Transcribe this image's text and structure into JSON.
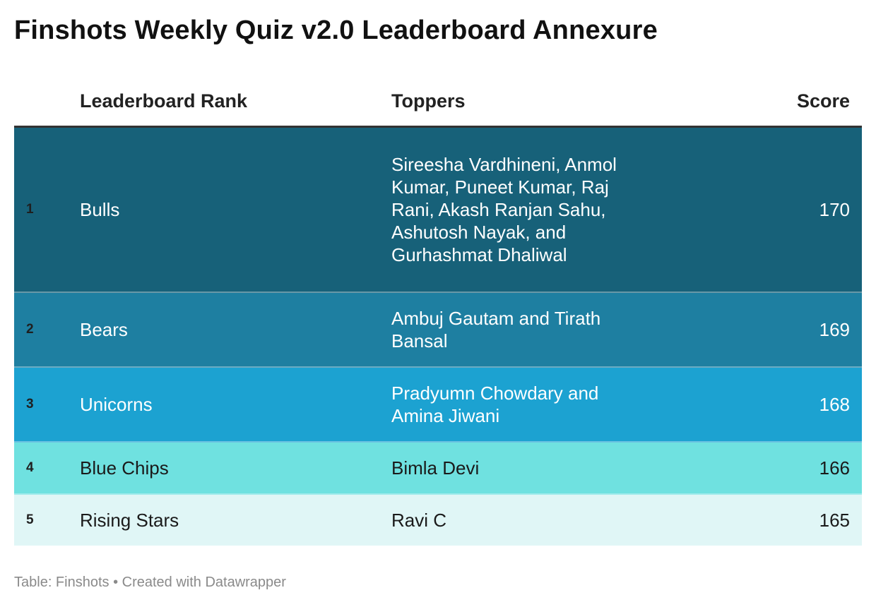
{
  "title": "Finshots Weekly Quiz v2.0 Leaderboard Annexure",
  "chart_data": {
    "type": "table",
    "columns": [
      "",
      "Leaderboard Rank",
      "Toppers",
      "Score"
    ],
    "rows": [
      {
        "num": "1",
        "rank": "Bulls",
        "toppers": "Sireesha Vardhineni, Anmol Kumar, Puneet Kumar, Raj Rani, Akash Ranjan Sahu, Ashutosh Nayak, and Gurhashmat Dhaliwal",
        "score": 170,
        "bg": "#176179",
        "fg": "#ffffff"
      },
      {
        "num": "2",
        "rank": "Bears",
        "toppers": "Ambuj Gautam and Tirath Bansal",
        "score": 169,
        "bg": "#1e7fa1",
        "fg": "#ffffff"
      },
      {
        "num": "3",
        "rank": "Unicorns",
        "toppers": "Pradyumn Chowdary and Amina Jiwani",
        "score": 168,
        "bg": "#1ca2d1",
        "fg": "#ffffff"
      },
      {
        "num": "4",
        "rank": "Blue Chips",
        "toppers": "Bimla Devi",
        "score": 166,
        "bg": "#6fe1e0",
        "fg": "#1a1a1a"
      },
      {
        "num": "5",
        "rank": "Rising Stars",
        "toppers": "Ravi C",
        "score": 165,
        "bg": "#e0f6f6",
        "fg": "#1a1a1a"
      }
    ]
  },
  "footer": "Table: Finshots • Created with Datawrapper"
}
